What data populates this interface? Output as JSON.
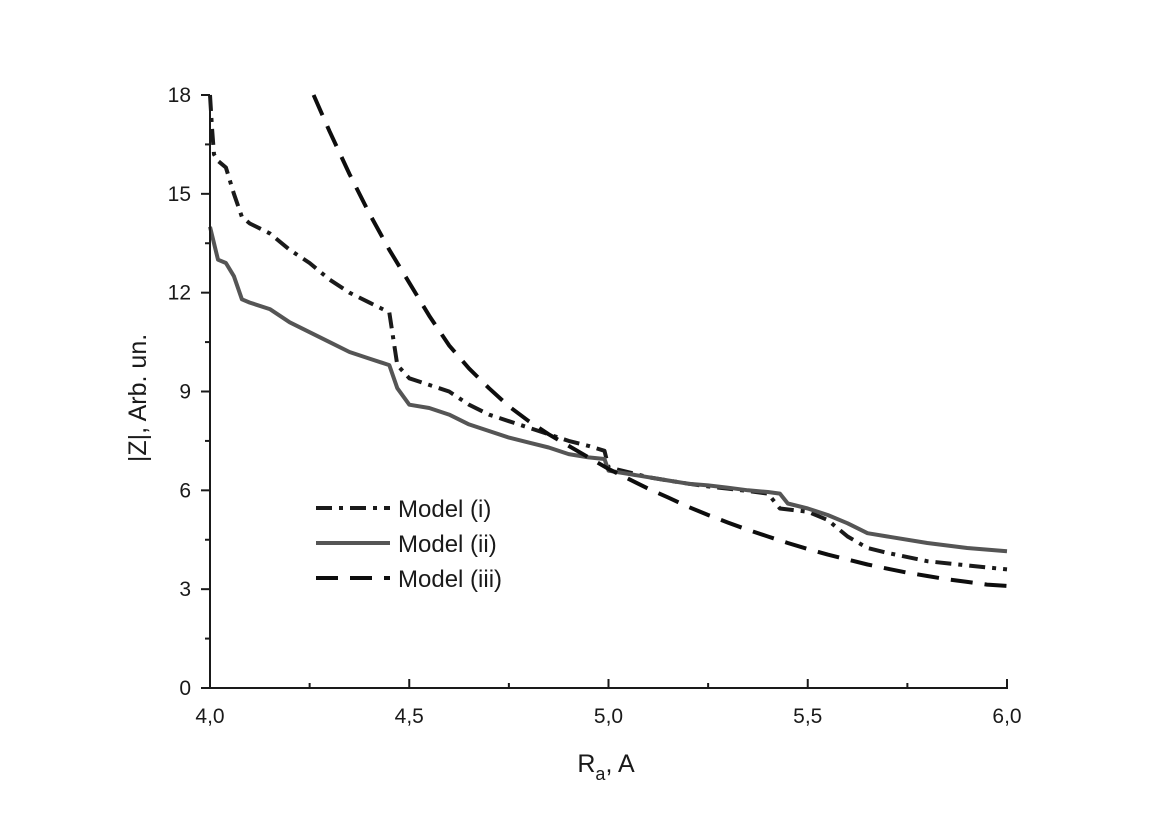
{
  "chart_data": {
    "type": "line",
    "title": "",
    "xlabel": "R",
    "xlabel_subscript": "a",
    "xlabel_suffix": ", A",
    "ylabel": "|Z|, Arb. un.",
    "xlim": [
      4.0,
      6.0
    ],
    "ylim": [
      0,
      18
    ],
    "x_ticks": [
      4.0,
      4.5,
      5.0,
      5.5,
      6.0
    ],
    "x_tick_labels": [
      "4,0",
      "4,5",
      "5,0",
      "5,5",
      "6,0"
    ],
    "y_ticks": [
      0,
      3,
      6,
      9,
      12,
      15,
      18
    ],
    "y_tick_labels": [
      "0",
      "3",
      "6",
      "9",
      "12",
      "15",
      "18"
    ],
    "grid": false,
    "legend_position": "lower-left inside",
    "series": [
      {
        "name": "Model (i)",
        "style": "dash-dot",
        "color": "#1a1a1a",
        "x": [
          4.0,
          4.005,
          4.01,
          4.02,
          4.04,
          4.06,
          4.08,
          4.1,
          4.15,
          4.2,
          4.25,
          4.3,
          4.35,
          4.4,
          4.45,
          4.47,
          4.5,
          4.55,
          4.6,
          4.65,
          4.7,
          4.75,
          4.8,
          4.85,
          4.9,
          4.95,
          4.99,
          5.0,
          5.05,
          5.1,
          5.15,
          5.2,
          5.25,
          5.3,
          5.35,
          5.4,
          5.43,
          5.5,
          5.55,
          5.6,
          5.65,
          5.7,
          5.8,
          5.9,
          6.0
        ],
        "y": [
          18.0,
          17.0,
          16.2,
          16.0,
          15.8,
          15.0,
          14.3,
          14.1,
          13.8,
          13.3,
          12.9,
          12.4,
          12.0,
          11.7,
          11.4,
          9.8,
          9.4,
          9.2,
          9.0,
          8.6,
          8.3,
          8.1,
          7.9,
          7.7,
          7.5,
          7.35,
          7.2,
          6.7,
          6.55,
          6.4,
          6.3,
          6.2,
          6.12,
          6.05,
          5.98,
          5.9,
          5.45,
          5.35,
          5.1,
          4.6,
          4.25,
          4.1,
          3.85,
          3.72,
          3.6
        ]
      },
      {
        "name": "Model (ii)",
        "style": "solid",
        "color": "#555555",
        "x": [
          4.0,
          4.02,
          4.04,
          4.06,
          4.08,
          4.1,
          4.15,
          4.2,
          4.25,
          4.3,
          4.35,
          4.4,
          4.45,
          4.47,
          4.5,
          4.55,
          4.6,
          4.65,
          4.7,
          4.75,
          4.8,
          4.85,
          4.9,
          4.95,
          4.99,
          5.0,
          5.05,
          5.1,
          5.15,
          5.2,
          5.25,
          5.3,
          5.35,
          5.4,
          5.43,
          5.45,
          5.5,
          5.55,
          5.6,
          5.65,
          5.7,
          5.8,
          5.9,
          6.0
        ],
        "y": [
          14.0,
          13.0,
          12.9,
          12.5,
          11.8,
          11.7,
          11.5,
          11.1,
          10.8,
          10.5,
          10.2,
          10.0,
          9.8,
          9.1,
          8.6,
          8.5,
          8.3,
          8.0,
          7.8,
          7.6,
          7.45,
          7.3,
          7.1,
          7.0,
          6.95,
          6.6,
          6.5,
          6.4,
          6.3,
          6.2,
          6.15,
          6.08,
          6.0,
          5.95,
          5.9,
          5.6,
          5.45,
          5.25,
          5.0,
          4.7,
          4.6,
          4.4,
          4.25,
          4.15
        ]
      },
      {
        "name": "Model (iii)",
        "style": "dashed",
        "color": "#0d0d0d",
        "x": [
          4.26,
          4.3,
          4.35,
          4.4,
          4.45,
          4.5,
          4.55,
          4.6,
          4.65,
          4.7,
          4.75,
          4.8,
          4.85,
          4.9,
          4.95,
          5.0,
          5.05,
          5.1,
          5.15,
          5.2,
          5.25,
          5.3,
          5.35,
          5.4,
          5.45,
          5.5,
          5.55,
          5.6,
          5.65,
          5.7,
          5.75,
          5.8,
          5.85,
          5.9,
          5.95,
          6.0
        ],
        "y": [
          18.0,
          16.9,
          15.6,
          14.4,
          13.3,
          12.3,
          11.3,
          10.4,
          9.7,
          9.1,
          8.55,
          8.1,
          7.7,
          7.35,
          7.0,
          6.65,
          6.35,
          6.05,
          5.78,
          5.5,
          5.25,
          5.02,
          4.8,
          4.6,
          4.4,
          4.22,
          4.05,
          3.9,
          3.75,
          3.62,
          3.5,
          3.4,
          3.3,
          3.22,
          3.14,
          3.1
        ]
      }
    ]
  }
}
